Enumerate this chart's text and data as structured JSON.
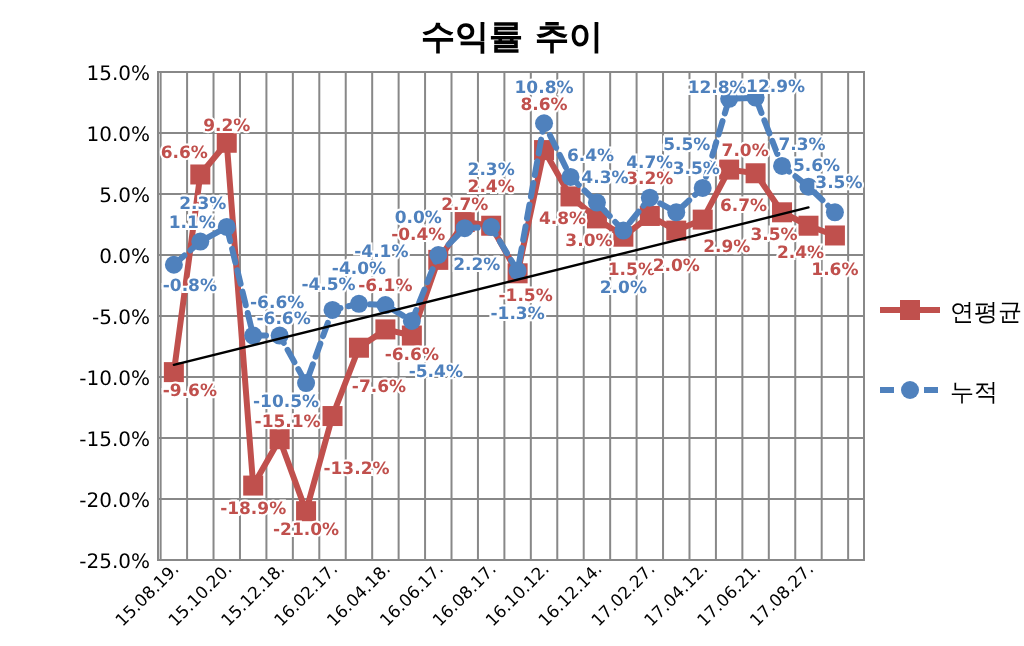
{
  "chart_data": {
    "type": "line",
    "title": "수익률 추이",
    "categories": [
      "15.08.19.",
      null,
      "15.10.20.",
      null,
      "15.12.18.",
      null,
      "16.02.17.",
      null,
      "16.04.18.",
      null,
      "16.06.17.",
      null,
      "16.08.17.",
      null,
      "16.10.12.",
      null,
      "16.12.14.",
      null,
      "17.02.27.",
      null,
      "17.04.12.",
      null,
      "17.06.21.",
      null,
      "17.08.27.",
      null
    ],
    "series": [
      {
        "name": "연평균",
        "color": "#c0504d",
        "marker": "square",
        "line_style": "solid",
        "values": [
          -9.6,
          6.6,
          9.2,
          -18.9,
          -15.1,
          -21.0,
          -13.2,
          -7.6,
          -6.1,
          -6.6,
          -0.4,
          2.7,
          2.4,
          -1.5,
          8.6,
          4.8,
          3.0,
          1.5,
          3.2,
          2.0,
          2.9,
          7.0,
          6.7,
          3.5,
          2.4,
          1.6
        ],
        "value_labels": [
          "-9.6%",
          "6.6%",
          "9.2%",
          "-18.9%",
          "-15.1%",
          "-21.0%",
          "-13.2%",
          "-7.6%",
          "-6.1%",
          "-6.6%",
          "-0.4%",
          "2.7%",
          "2.4%",
          "-1.5%",
          "8.6%",
          "4.8%",
          "3.0%",
          "1.5%",
          "3.2%",
          "2.0%",
          "2.9%",
          "7.0%",
          "6.7%",
          "3.5%",
          "2.4%",
          "1.6%"
        ]
      },
      {
        "name": "누적",
        "color": "#4f81bd",
        "marker": "circle",
        "line_style": "dashed",
        "values": [
          -0.8,
          1.1,
          2.3,
          -6.6,
          -6.6,
          -10.5,
          -4.5,
          -4.0,
          -4.1,
          -5.4,
          0.0,
          2.2,
          2.3,
          -1.3,
          10.8,
          6.4,
          4.3,
          2.0,
          4.7,
          3.5,
          5.5,
          12.8,
          12.9,
          7.3,
          5.6,
          3.5
        ],
        "value_labels": [
          "-0.8%",
          "1.1%",
          "2.3%",
          "-6.6%",
          "-6.6%",
          "-10.5%",
          "-4.5%",
          "-4.0%",
          "-4.1%",
          "-5.4%",
          "0.0%",
          "2.2%",
          "2.3%",
          "-1.3%",
          "10.8%",
          "6.4%",
          "4.3%",
          "2.0%",
          "4.7%",
          "3.5%",
          "5.5%",
          "12.8%",
          "12.9%",
          "7.3%",
          "5.6%",
          "3.5%"
        ]
      },
      {
        "type": "line",
        "color": "#000000",
        "marker": "none",
        "line_style": "solid",
        "x": [
          "15.08.19.",
          "17.08.27."
        ],
        "values": [
          -9.0,
          3.9
        ]
      }
    ],
    "ylim": [
      -25,
      15
    ],
    "yticks": [
      {
        "value": -25,
        "label": "-25.0%"
      },
      {
        "value": -20,
        "label": "-20.0%"
      },
      {
        "value": -15,
        "label": "-15.0%"
      },
      {
        "value": -10,
        "label": "-10.0%"
      },
      {
        "value": -5,
        "label": "-5.0%"
      },
      {
        "value": 0,
        "label": "0.0%"
      },
      {
        "value": 5,
        "label": "5.0%"
      },
      {
        "value": 10,
        "label": "10.0%"
      },
      {
        "value": 15,
        "label": "15.0%"
      }
    ],
    "grid": true,
    "legend": "right"
  }
}
